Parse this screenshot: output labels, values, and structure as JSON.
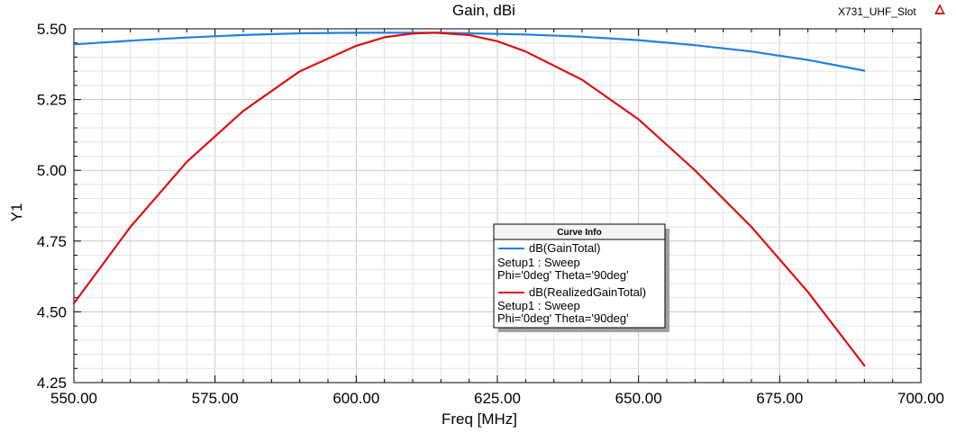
{
  "design_name": "X731_UHF_Slot",
  "chart_data": {
    "type": "line",
    "title": "Gain, dBi",
    "xlabel": "Freq [MHz]",
    "ylabel": "Y1",
    "xlim": [
      550,
      700
    ],
    "ylim": [
      4.25,
      5.5
    ],
    "x_ticks": [
      "550.00",
      "575.00",
      "600.00",
      "625.00",
      "650.00",
      "675.00",
      "700.00"
    ],
    "y_ticks": [
      "4.25",
      "4.50",
      "4.75",
      "5.00",
      "5.25",
      "5.50"
    ],
    "grid": true,
    "legend_placement": "center-right",
    "legend_title": "Curve Info",
    "series": [
      {
        "name": "dB(GainTotal)",
        "setup": "Setup1 : Sweep",
        "variables": "Phi='0deg' Theta='90deg'",
        "color": "#1E82E0",
        "x": [
          550,
          560,
          570,
          580,
          590,
          600,
          610,
          615,
          620,
          630,
          640,
          650,
          660,
          670,
          680,
          690
        ],
        "y": [
          5.445,
          5.458,
          5.469,
          5.478,
          5.484,
          5.486,
          5.486,
          5.486,
          5.484,
          5.48,
          5.472,
          5.46,
          5.442,
          5.42,
          5.39,
          5.352
        ]
      },
      {
        "name": "dB(RealizedGainTotal)",
        "setup": "Setup1 : Sweep",
        "variables": "Phi='0deg' Theta='90deg'",
        "color": "#E01010",
        "x": [
          550,
          560,
          570,
          580,
          590,
          600,
          605,
          610,
          614,
          620,
          625,
          630,
          640,
          650,
          660,
          670,
          680,
          690
        ],
        "y": [
          4.53,
          4.8,
          5.03,
          5.21,
          5.35,
          5.44,
          5.47,
          5.483,
          5.486,
          5.478,
          5.456,
          5.42,
          5.32,
          5.18,
          5.0,
          4.8,
          4.57,
          4.31
        ]
      }
    ]
  }
}
